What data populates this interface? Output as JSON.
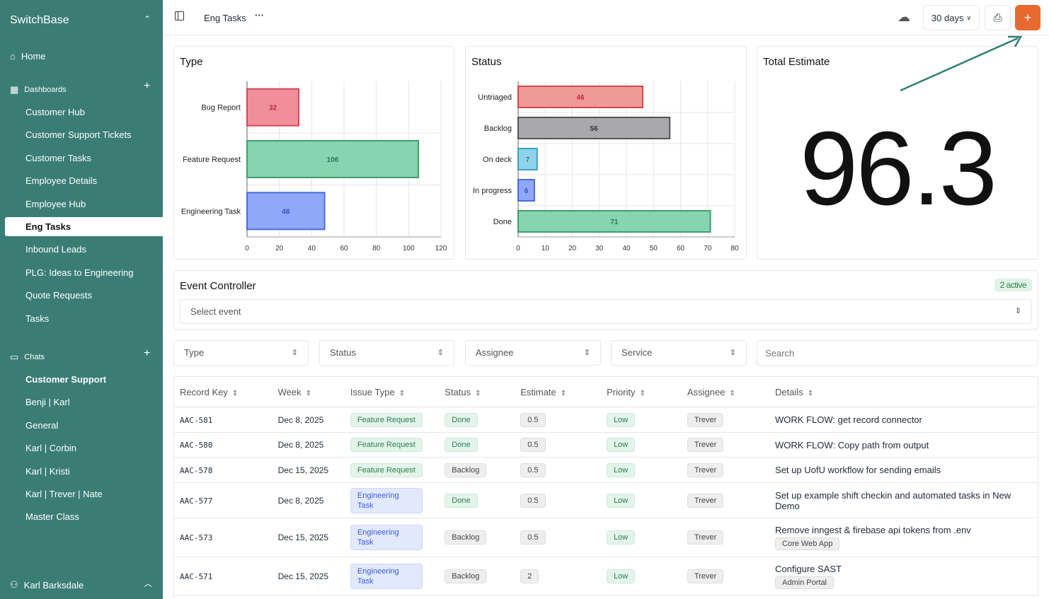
{
  "sidebar": {
    "brand": "SwitchBase",
    "home": "Home",
    "dashboards_label": "Dashboards",
    "dashboards": [
      "Customer Hub",
      "Customer Support Tickets",
      "Customer Tasks",
      "Employee Details",
      "Employee Hub",
      "Eng Tasks",
      "Inbound Leads",
      "PLG: Ideas to Engineering",
      "Quote Requests",
      "Tasks"
    ],
    "chats_label": "Chats",
    "chats": [
      "Customer Support",
      "Benji | Karl",
      "General",
      "Karl | Corbin",
      "Karl | Kristi",
      "Karl | Trever | Nate",
      "Master Class"
    ],
    "user": "Karl Barksdale"
  },
  "topbar": {
    "title": "Eng Tasks",
    "more": "···",
    "range": "30 days",
    "add": "+"
  },
  "chart_data": [
    {
      "type": "bar",
      "title": "Type",
      "orientation": "horizontal",
      "categories": [
        "Bug Report",
        "Feature Request",
        "Engineering Task"
      ],
      "values": [
        32,
        106,
        48
      ],
      "xlim": [
        0,
        120
      ],
      "xticks": [
        0,
        20,
        40,
        60,
        80,
        100,
        120
      ],
      "colors": [
        "#f08f9a",
        "#86d4b0",
        "#8fa8f7"
      ],
      "borders": [
        "#d0485a",
        "#3f9f6d",
        "#4c6be0"
      ],
      "label_colors": [
        "#c0283c",
        "#2a7a50",
        "#3550c9"
      ]
    },
    {
      "type": "bar",
      "title": "Status",
      "orientation": "horizontal",
      "categories": [
        "Untriaged",
        "Backlog",
        "On deck",
        "In progress",
        "Done"
      ],
      "values": [
        46,
        56,
        7,
        6,
        71
      ],
      "xlim": [
        0,
        80
      ],
      "xticks": [
        0,
        10,
        20,
        30,
        40,
        50,
        60,
        70,
        80
      ],
      "colors": [
        "#f09a98",
        "#a8a8ad",
        "#8fd3ea",
        "#8fa8f7",
        "#86d4b0"
      ],
      "borders": [
        "#d04848",
        "#555",
        "#3ba0c8",
        "#4c6be0",
        "#3f9f6d"
      ],
      "label_colors": [
        "#c0283c",
        "#333",
        "#1f7fa6",
        "#3550c9",
        "#2a7a50"
      ]
    }
  ],
  "total": {
    "title": "Total Estimate",
    "value": "96.3"
  },
  "events": {
    "title": "Event Controller",
    "badge": "2 active",
    "placeholder": "Select event"
  },
  "filters": {
    "type": "Type",
    "status": "Status",
    "assignee": "Assignee",
    "service": "Service",
    "search": "Search"
  },
  "table": {
    "headers": [
      "Record Key",
      "Week",
      "Issue Type",
      "Status",
      "Estimate",
      "Priority",
      "Assignee",
      "Details"
    ],
    "rows": [
      {
        "key": "AAC-581",
        "week": "Dec 8, 2025",
        "type": "Feature Request",
        "status": "Done",
        "estimate": "0.5",
        "priority": "Low",
        "assignee": "Trever",
        "details": "WORK FLOW: get record connector",
        "service": ""
      },
      {
        "key": "AAC-580",
        "week": "Dec 8, 2025",
        "type": "Feature Request",
        "status": "Done",
        "estimate": "0.5",
        "priority": "Low",
        "assignee": "Trever",
        "details": "WORK FLOW: Copy path from output",
        "service": ""
      },
      {
        "key": "AAC-578",
        "week": "Dec 15, 2025",
        "type": "Feature Request",
        "status": "Backlog",
        "estimate": "0.5",
        "priority": "Low",
        "assignee": "Trever",
        "details": "Set up UofU workflow for sending emails",
        "service": ""
      },
      {
        "key": "AAC-577",
        "week": "Dec 8, 2025",
        "type": "Engineering Task",
        "status": "Done",
        "estimate": "0.5",
        "priority": "Low",
        "assignee": "Trever",
        "details": "Set up example shift checkin and automated tasks in New Demo",
        "service": ""
      },
      {
        "key": "AAC-573",
        "week": "Dec 15, 2025",
        "type": "Engineering Task",
        "status": "Backlog",
        "estimate": "0.5",
        "priority": "Low",
        "assignee": "Trever",
        "details": "Remove inngest & firebase api tokens from .env",
        "service": "Core Web App"
      },
      {
        "key": "AAC-571",
        "week": "Dec 15, 2025",
        "type": "Engineering Task",
        "status": "Backlog",
        "estimate": "2",
        "priority": "Low",
        "assignee": "Trever",
        "details": "Configure SAST",
        "service": "Admin Portal"
      }
    ]
  },
  "colors": {
    "sidebar": "#3a7d75",
    "accent": "#e8692f",
    "arrow": "#2f7f73"
  }
}
